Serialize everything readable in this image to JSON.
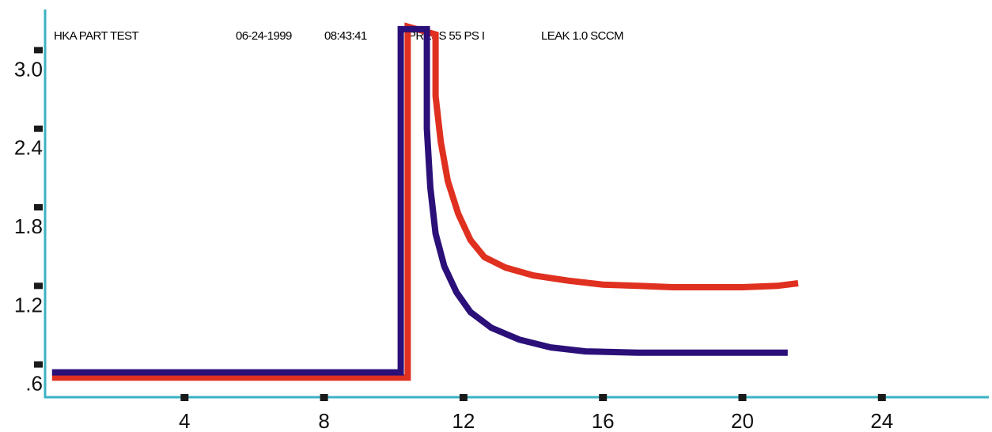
{
  "header": {
    "part": "HKA PART TEST",
    "date": "06-24-1999",
    "time": "08:43:41",
    "press": "PRESS 55 PS I",
    "leak": "LEAK 1.0 SCCM"
  },
  "chart_data": {
    "type": "line",
    "title": "",
    "xlabel": "",
    "ylabel": "",
    "xlim": [
      0,
      27
    ],
    "ylim": [
      0.35,
      3.25
    ],
    "x_ticks": [
      {
        "value": 4,
        "label": "4"
      },
      {
        "value": 8,
        "label": "8"
      },
      {
        "value": 12,
        "label": "12"
      },
      {
        "value": 16,
        "label": "16"
      },
      {
        "value": 20,
        "label": "20"
      },
      {
        "value": 24,
        "label": "24"
      }
    ],
    "y_ticks": [
      {
        "value": 0.6,
        "label": ".6"
      },
      {
        "value": 1.2,
        "label": "1.2"
      },
      {
        "value": 1.8,
        "label": "1.8"
      },
      {
        "value": 2.4,
        "label": "2.4"
      },
      {
        "value": 3.0,
        "label": "3.0"
      }
    ],
    "grid": false,
    "colors": {
      "axis": "#3bb3c3",
      "tick_mark": "#1a1a1a",
      "red": "#e03020",
      "blue": "#2a1078"
    },
    "series": [
      {
        "color": "#e03020",
        "points": [
          [
            0.2,
            0.5
          ],
          [
            10.4,
            0.5
          ],
          [
            10.4,
            3.18
          ],
          [
            11.2,
            3.12
          ],
          [
            11.2,
            2.65
          ],
          [
            11.35,
            2.3
          ],
          [
            11.55,
            2.0
          ],
          [
            11.85,
            1.75
          ],
          [
            12.2,
            1.55
          ],
          [
            12.6,
            1.42
          ],
          [
            13.2,
            1.34
          ],
          [
            14.0,
            1.28
          ],
          [
            15.0,
            1.24
          ],
          [
            16.0,
            1.21
          ],
          [
            17.0,
            1.2
          ],
          [
            18.0,
            1.19
          ],
          [
            19.0,
            1.19
          ],
          [
            20.0,
            1.19
          ],
          [
            21.0,
            1.2
          ],
          [
            21.6,
            1.22
          ]
        ]
      },
      {
        "color": "#2a1078",
        "points": [
          [
            0.2,
            0.54
          ],
          [
            10.2,
            0.54
          ],
          [
            10.2,
            3.16
          ],
          [
            10.95,
            3.16
          ],
          [
            10.95,
            2.4
          ],
          [
            11.05,
            1.95
          ],
          [
            11.2,
            1.6
          ],
          [
            11.45,
            1.35
          ],
          [
            11.8,
            1.15
          ],
          [
            12.2,
            1.0
          ],
          [
            12.8,
            0.88
          ],
          [
            13.6,
            0.79
          ],
          [
            14.5,
            0.73
          ],
          [
            15.5,
            0.7
          ],
          [
            17.0,
            0.69
          ],
          [
            19.0,
            0.69
          ],
          [
            21.3,
            0.69
          ]
        ]
      }
    ]
  }
}
